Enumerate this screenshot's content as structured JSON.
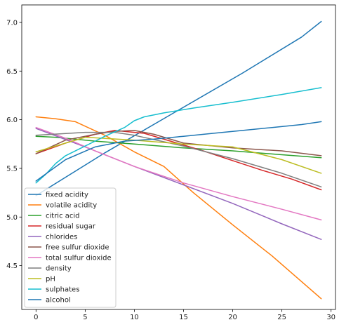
{
  "chart_data": {
    "type": "line",
    "title": "",
    "xlabel": "",
    "ylabel": "",
    "xlim": [
      -1.45,
      30.45
    ],
    "ylim": [
      4.05,
      7.18
    ],
    "xticks": [
      0,
      5,
      10,
      15,
      20,
      25,
      30
    ],
    "yticks": [
      4.5,
      5.0,
      5.5,
      6.0,
      6.5,
      7.0
    ],
    "grid": false,
    "legend_position": "lower-left",
    "series": [
      {
        "name": "fixed acidity",
        "color": "#1f77b4",
        "x": [
          0,
          7,
          14,
          21,
          27,
          29
        ],
        "y": [
          5.22,
          5.66,
          6.07,
          6.48,
          6.85,
          7.01
        ]
      },
      {
        "name": "volatile acidity",
        "color": "#ff7f0e",
        "x": [
          0,
          2,
          4,
          7,
          10,
          13,
          16,
          20,
          24,
          29
        ],
        "y": [
          6.03,
          6.01,
          5.98,
          5.84,
          5.67,
          5.52,
          5.25,
          4.92,
          4.6,
          4.16
        ]
      },
      {
        "name": "citric acid",
        "color": "#2ca02c",
        "x": [
          0,
          2,
          6,
          10,
          15,
          20,
          25,
          29
        ],
        "y": [
          5.83,
          5.82,
          5.78,
          5.75,
          5.71,
          5.68,
          5.64,
          5.61
        ]
      },
      {
        "name": "residual sugar",
        "color": "#d62728",
        "x": [
          0,
          3,
          6,
          8,
          11,
          14,
          17,
          20,
          23,
          26,
          29
        ],
        "y": [
          5.65,
          5.76,
          5.85,
          5.89,
          5.86,
          5.77,
          5.68,
          5.58,
          5.48,
          5.39,
          5.28
        ]
      },
      {
        "name": "chlorides",
        "color": "#9467bd",
        "x": [
          0,
          5,
          10,
          15,
          20,
          25,
          29
        ],
        "y": [
          5.91,
          5.72,
          5.52,
          5.33,
          5.14,
          4.93,
          4.77
        ]
      },
      {
        "name": "free sulfur dioxide",
        "color": "#8c564b",
        "x": [
          0,
          3,
          6,
          8,
          10,
          12,
          15,
          20,
          25,
          29
        ],
        "y": [
          5.65,
          5.79,
          5.85,
          5.88,
          5.89,
          5.85,
          5.76,
          5.71,
          5.68,
          5.63
        ]
      },
      {
        "name": "total sulfur dioxide",
        "color": "#e377c2",
        "x": [
          0,
          3,
          6,
          10,
          15,
          20,
          25,
          29
        ],
        "y": [
          5.92,
          5.81,
          5.68,
          5.52,
          5.35,
          5.21,
          5.08,
          4.97
        ]
      },
      {
        "name": "density",
        "color": "#7f7f7f",
        "x": [
          0,
          5,
          8,
          10,
          15,
          20,
          25,
          29
        ],
        "y": [
          5.84,
          5.87,
          5.87,
          5.84,
          5.73,
          5.6,
          5.45,
          5.31
        ]
      },
      {
        "name": "pH",
        "color": "#bcbd22",
        "x": [
          0,
          5,
          10,
          15,
          20,
          25,
          29
        ],
        "y": [
          5.67,
          5.82,
          5.79,
          5.75,
          5.72,
          5.59,
          5.45
        ]
      },
      {
        "name": "sulphates",
        "color": "#17becf",
        "x": [
          0,
          1,
          2,
          3,
          5,
          7,
          9,
          10,
          11,
          13,
          16,
          20,
          25,
          29
        ],
        "y": [
          5.35,
          5.44,
          5.55,
          5.63,
          5.73,
          5.83,
          5.92,
          5.99,
          6.03,
          6.07,
          6.12,
          6.18,
          6.26,
          6.33
        ]
      },
      {
        "name": "alcohol",
        "color": "#1f77b4",
        "x": [
          0,
          3,
          6,
          9,
          12,
          15,
          18,
          21,
          24,
          27,
          29
        ],
        "y": [
          5.37,
          5.59,
          5.72,
          5.78,
          5.8,
          5.83,
          5.86,
          5.89,
          5.92,
          5.95,
          5.98
        ]
      }
    ]
  }
}
